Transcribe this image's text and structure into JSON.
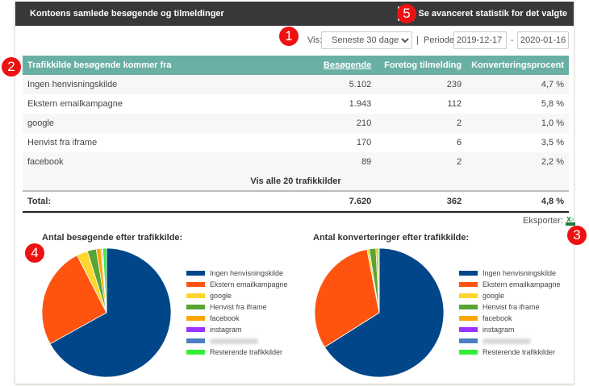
{
  "header": {
    "title": "Kontoens samlede besøgende og tilmeldinger",
    "advanced_link": "Se avanceret statistik for det valgte"
  },
  "filters": {
    "vis_label": "Vis:",
    "range_selected": "Seneste 30 dage",
    "separator": "|",
    "periode_label": "Periode:",
    "from_date": "2019-12-17",
    "dash": "-",
    "to_date": "2020-01-16"
  },
  "table": {
    "headers": {
      "source": "Trafikkilde besøgende kommer fra",
      "visitors": "Besøgende",
      "signups": "Foretog tilmelding",
      "conversion": "Konverteringsprocent"
    },
    "rows": [
      {
        "source": "Ingen henvisningskilde",
        "visitors": "5.102",
        "signups": "239",
        "conversion": "4,7 %"
      },
      {
        "source": "Ekstern emailkampagne",
        "visitors": "1.943",
        "signups": "112",
        "conversion": "5,8 %"
      },
      {
        "source": "google",
        "visitors": "210",
        "signups": "2",
        "conversion": "1,0 %"
      },
      {
        "source": "Henvist fra iframe",
        "visitors": "170",
        "signups": "6",
        "conversion": "3,5 %"
      },
      {
        "source": "facebook",
        "visitors": "89",
        "signups": "2",
        "conversion": "2,2 %"
      }
    ],
    "show_all": "Vis alle 20 trafikkilder",
    "total": {
      "label": "Total:",
      "visitors": "7.620",
      "signups": "362",
      "conversion": "4,8 %"
    }
  },
  "export": {
    "label": "Eksporter:"
  },
  "badges": [
    "1",
    "2",
    "3",
    "4",
    "5"
  ],
  "chart_data": [
    {
      "type": "pie",
      "title": "Antal besøgende efter trafikkilde:",
      "legend_position": "right",
      "categories": [
        "Ingen henvisningskilde",
        "Ekstern emailkampagne",
        "google",
        "Henvist fra iframe",
        "facebook",
        "instagram",
        "",
        "Resterende trafikkilder"
      ],
      "colors": [
        "#02468a",
        "#fe5410",
        "#fdd62e",
        "#57a534",
        "#ffa500",
        "#9933ff",
        "#4a7fc1",
        "#33ee33"
      ],
      "values": [
        5102,
        1943,
        210,
        170,
        89,
        20,
        16,
        70
      ]
    },
    {
      "type": "pie",
      "title": "Antal konverteringer efter trafikkilde:",
      "legend_position": "right",
      "categories": [
        "Ingen henvisningskilde",
        "Ekstern emailkampagne",
        "google",
        "Henvist fra iframe",
        "facebook",
        "instagram",
        "",
        "Resterende trafikkilder"
      ],
      "colors": [
        "#02468a",
        "#fe5410",
        "#fdd62e",
        "#57a534",
        "#ffa500",
        "#9933ff",
        "#4a7fc1",
        "#33ee33"
      ],
      "values": [
        239,
        112,
        2,
        6,
        2,
        0,
        0,
        1
      ]
    }
  ]
}
